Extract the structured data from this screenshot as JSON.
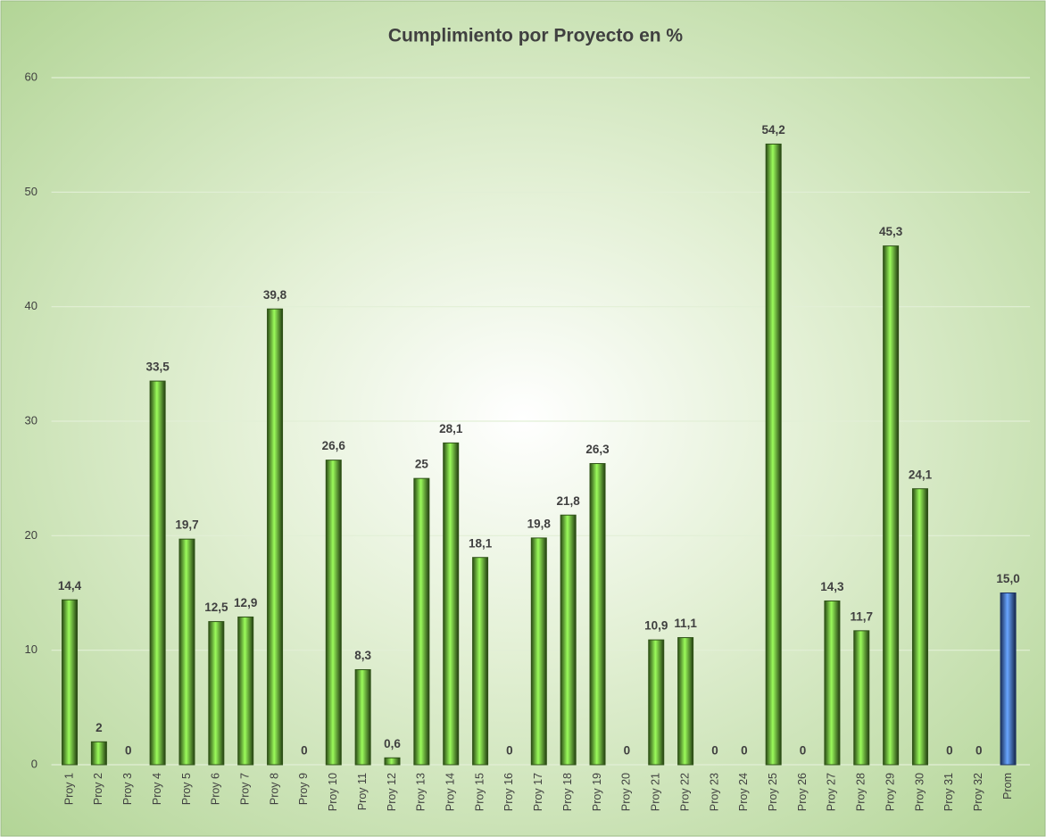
{
  "chart_data": {
    "type": "bar",
    "title": "Cumplimiento por Proyecto en %",
    "categories": [
      "Proy 1",
      "Proy 2",
      "Proy 3",
      "Proy 4",
      "Proy 5",
      "Proy 6",
      "Proy 7",
      "Proy 8",
      "Proy 9",
      "Proy 10",
      "Proy 11",
      "Proy 12",
      "Proy 13",
      "Proy 14",
      "Proy 15",
      "Proy 16",
      "Proy 17",
      "Proy 18",
      "Proy 19",
      "Proy 20",
      "Proy 21",
      "Proy 22",
      "Proy 23",
      "Proy 24",
      "Proy 25",
      "Proy 26",
      "Proy 27",
      "Proy 28",
      "Proy 29",
      "Proy 30",
      "Proy 31",
      "Proy 32",
      "Prom"
    ],
    "values": [
      14.4,
      2,
      0,
      33.5,
      19.7,
      12.5,
      12.9,
      39.8,
      0,
      26.6,
      8.3,
      0.6,
      25,
      28.1,
      18.1,
      0,
      19.8,
      21.8,
      26.3,
      0,
      10.9,
      11.1,
      0,
      0,
      54.2,
      0,
      14.3,
      11.7,
      45.3,
      24.1,
      0,
      0,
      15.0
    ],
    "value_labels": [
      "14,4",
      "2",
      "0",
      "33,5",
      "19,7",
      "12,5",
      "12,9",
      "39,8",
      "0",
      "26,6",
      "8,3",
      "0,6",
      "25",
      "28,1",
      "18,1",
      "0",
      "19,8",
      "21,8",
      "26,3",
      "0",
      "10,9",
      "11,1",
      "0",
      "0",
      "54,2",
      "0",
      "14,3",
      "11,7",
      "45,3",
      "24,1",
      "0",
      "0",
      "15,0"
    ],
    "colors": [
      "#4e8a26",
      "#4e8a26",
      "#4e8a26",
      "#4e8a26",
      "#4e8a26",
      "#4e8a26",
      "#4e8a26",
      "#4e8a26",
      "#4e8a26",
      "#4e8a26",
      "#4e8a26",
      "#4e8a26",
      "#4e8a26",
      "#4e8a26",
      "#4e8a26",
      "#4e8a26",
      "#4e8a26",
      "#4e8a26",
      "#4e8a26",
      "#4e8a26",
      "#4e8a26",
      "#4e8a26",
      "#4e8a26",
      "#4e8a26",
      "#4e8a26",
      "#4e8a26",
      "#4e8a26",
      "#4e8a26",
      "#4e8a26",
      "#4e8a26",
      "#4e8a26",
      "#4e8a26",
      "#2f55a4"
    ],
    "ylim": [
      0,
      60
    ],
    "yticks": [
      0,
      10,
      20,
      30,
      40,
      50,
      60
    ],
    "grid": true
  }
}
